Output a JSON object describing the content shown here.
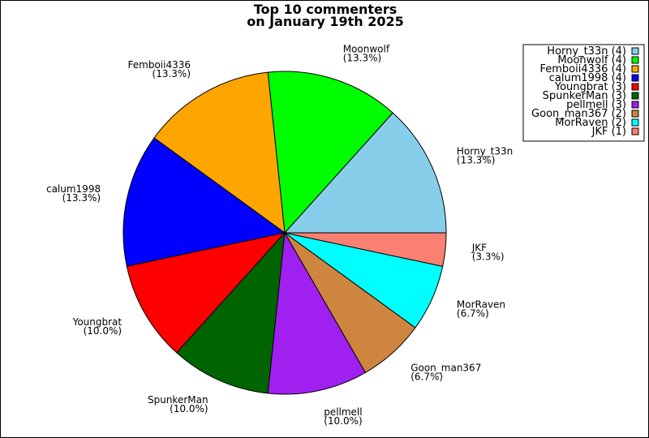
{
  "chart_data": {
    "type": "pie",
    "title": [
      "Top 10 commenters",
      "on January 19th 2025"
    ],
    "start_angle_deg": 0,
    "direction": "counterclockwise",
    "legend_position": "top-right",
    "slices": [
      {
        "name": "Horny_t33n",
        "value": 4,
        "percent_label": "(13.3%)",
        "legend": "Horny_t33n (4)",
        "color": "#87ceeb"
      },
      {
        "name": "Moonwolf",
        "value": 4,
        "percent_label": "(13.3%)",
        "legend": "Moonwolf (4)",
        "color": "#00ff00"
      },
      {
        "name": "Femboii4336",
        "value": 4,
        "percent_label": "(13.3%)",
        "legend": "Femboii4336 (4)",
        "color": "#ffa500"
      },
      {
        "name": "calum1998",
        "value": 4,
        "percent_label": "(13.3%)",
        "legend": "calum1998 (4)",
        "color": "#0000ff"
      },
      {
        "name": "Youngbrat",
        "value": 3,
        "percent_label": "(10.0%)",
        "legend": "Youngbrat (3)",
        "color": "#ff0000"
      },
      {
        "name": "SpunkerMan",
        "value": 3,
        "percent_label": "(10.0%)",
        "legend": "SpunkerMan (3)",
        "color": "#006400"
      },
      {
        "name": "pellmell",
        "value": 3,
        "percent_label": "(10.0%)",
        "legend": "pellmell (3)",
        "color": "#a020f0"
      },
      {
        "name": "Goon_man367",
        "value": 2,
        "percent_label": "(6.7%)",
        "legend": "Goon_man367 (2)",
        "color": "#cd853f"
      },
      {
        "name": "MorRaven",
        "value": 2,
        "percent_label": "(6.7%)",
        "legend": "MorRaven (2)",
        "color": "#00ffff"
      },
      {
        "name": "JKF",
        "value": 1,
        "percent_label": "(3.3%)",
        "legend": "JKF (1)",
        "color": "#fa8072"
      }
    ]
  }
}
